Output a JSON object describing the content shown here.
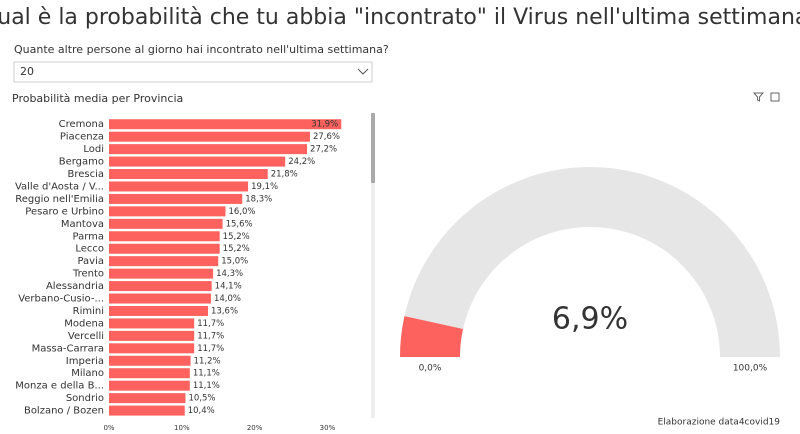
{
  "title": "Qual è la probabilità che tu abbia \"incontrato\" il Virus nell'ultima settimana?",
  "filter": {
    "label": "Quante altre persone al giorno hai incontrato nell'ultima settimana?",
    "value": "20"
  },
  "footer": "Elaborazione data4covid19",
  "chart_data": [
    {
      "type": "bar",
      "orientation": "horizontal",
      "title": "Probabilità media per Provincia",
      "categories": [
        "Cremona",
        "Piacenza",
        "Lodi",
        "Bergamo",
        "Brescia",
        "Valle d'Aosta / V...",
        "Reggio nell'Emilia",
        "Pesaro e Urbino",
        "Mantova",
        "Parma",
        "Lecco",
        "Pavia",
        "Trento",
        "Alessandria",
        "Verbano-Cusio-...",
        "Rimini",
        "Modena",
        "Vercelli",
        "Massa-Carrara",
        "Imperia",
        "Milano",
        "Monza e della B...",
        "Sondrio",
        "Bolzano / Bozen"
      ],
      "values": [
        31.9,
        27.6,
        27.2,
        24.2,
        21.8,
        19.1,
        18.3,
        16.0,
        15.6,
        15.2,
        15.2,
        15.0,
        14.3,
        14.1,
        14.0,
        13.6,
        11.7,
        11.7,
        11.7,
        11.2,
        11.1,
        11.1,
        10.5,
        10.4
      ],
      "value_labels": [
        "31,9%",
        "27,6%",
        "27,2%",
        "24,2%",
        "21,8%",
        "19,1%",
        "18,3%",
        "16,0%",
        "15,6%",
        "15,2%",
        "15,2%",
        "15,0%",
        "14,3%",
        "14,1%",
        "14,0%",
        "13,6%",
        "11,7%",
        "11,7%",
        "11,7%",
        "11,2%",
        "11,1%",
        "11,1%",
        "10,5%",
        "10,4%"
      ],
      "color": "#fd625e",
      "xlim": [
        0,
        32
      ],
      "xticks": [
        {
          "value": 0,
          "label": "0%"
        },
        {
          "value": 10,
          "label": "10%"
        },
        {
          "value": 20,
          "label": "20%"
        },
        {
          "value": 30,
          "label": "30%"
        }
      ]
    },
    {
      "type": "gauge",
      "value": 6.9,
      "value_label": "6,9%",
      "color": "#fd625e",
      "track_color": "#e6e6e6",
      "ylim": [
        0,
        100
      ],
      "yticks": [
        {
          "value": 0,
          "label": "0,0%"
        },
        {
          "value": 100,
          "label": "100,0%"
        }
      ]
    }
  ]
}
